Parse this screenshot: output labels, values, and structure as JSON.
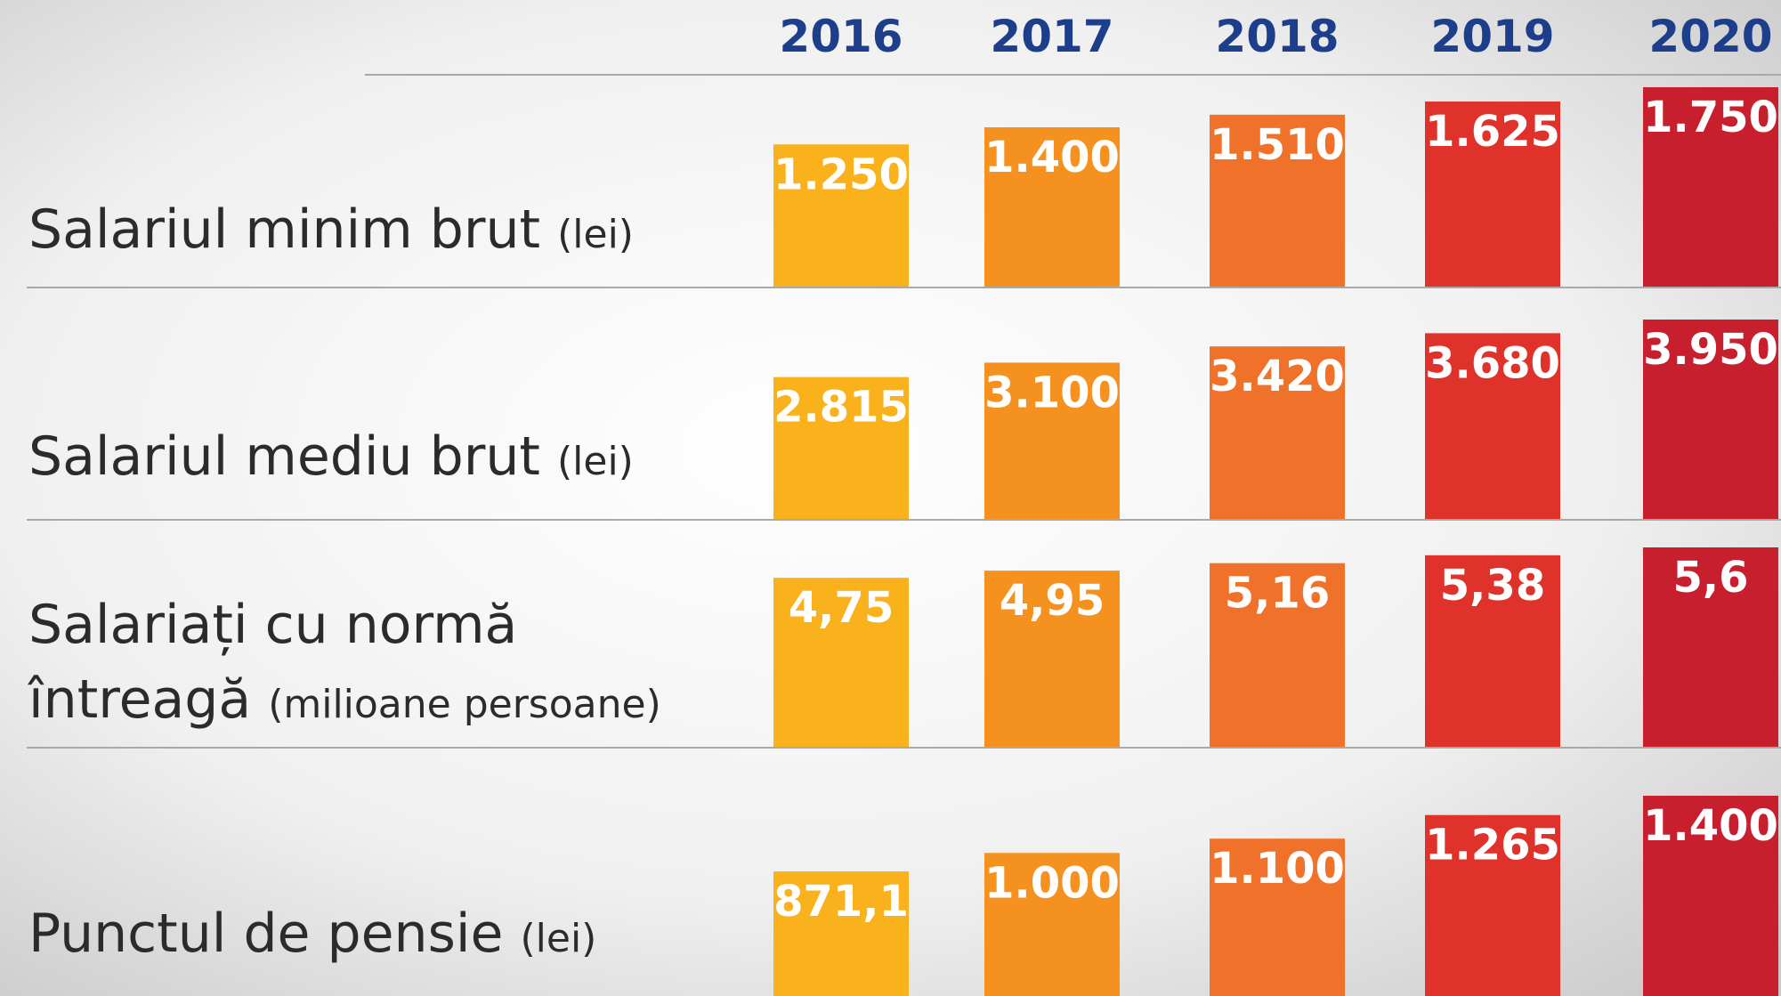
{
  "chart_data": {
    "type": "bar",
    "categories": [
      "2016",
      "2017",
      "2018",
      "2019",
      "2020"
    ],
    "colors": [
      "#f9b11c",
      "#f5921f",
      "#f07129",
      "#df322a",
      "#c71f2d"
    ],
    "series": [
      {
        "label_lines": [
          "Salariul minim brut"
        ],
        "unit": "(lei)",
        "values": [
          1250,
          1400,
          1510,
          1625,
          1750
        ],
        "value_labels": [
          "1.250",
          "1.400",
          "1.510",
          "1.625",
          "1.750"
        ]
      },
      {
        "label_lines": [
          "Salariul mediu brut"
        ],
        "unit": "(lei)",
        "values": [
          2815,
          3100,
          3420,
          3680,
          3950
        ],
        "value_labels": [
          "2.815",
          "3.100",
          "3.420",
          "3.680",
          "3.950"
        ]
      },
      {
        "label_lines": [
          "Salariați cu normă",
          "întreagă"
        ],
        "unit": "(milioane persoane)",
        "values": [
          4.75,
          4.95,
          5.16,
          5.38,
          5.6
        ],
        "value_labels": [
          "4,75",
          "4,95",
          "5,16",
          "5,38",
          "5,6"
        ]
      },
      {
        "label_lines": [
          "Punctul de pensie"
        ],
        "unit": "(lei)",
        "values": [
          871.1,
          1000,
          1100,
          1265,
          1400
        ],
        "value_labels": [
          "871,1",
          "1.000",
          "1.100",
          "1.265",
          "1.400"
        ]
      }
    ]
  }
}
